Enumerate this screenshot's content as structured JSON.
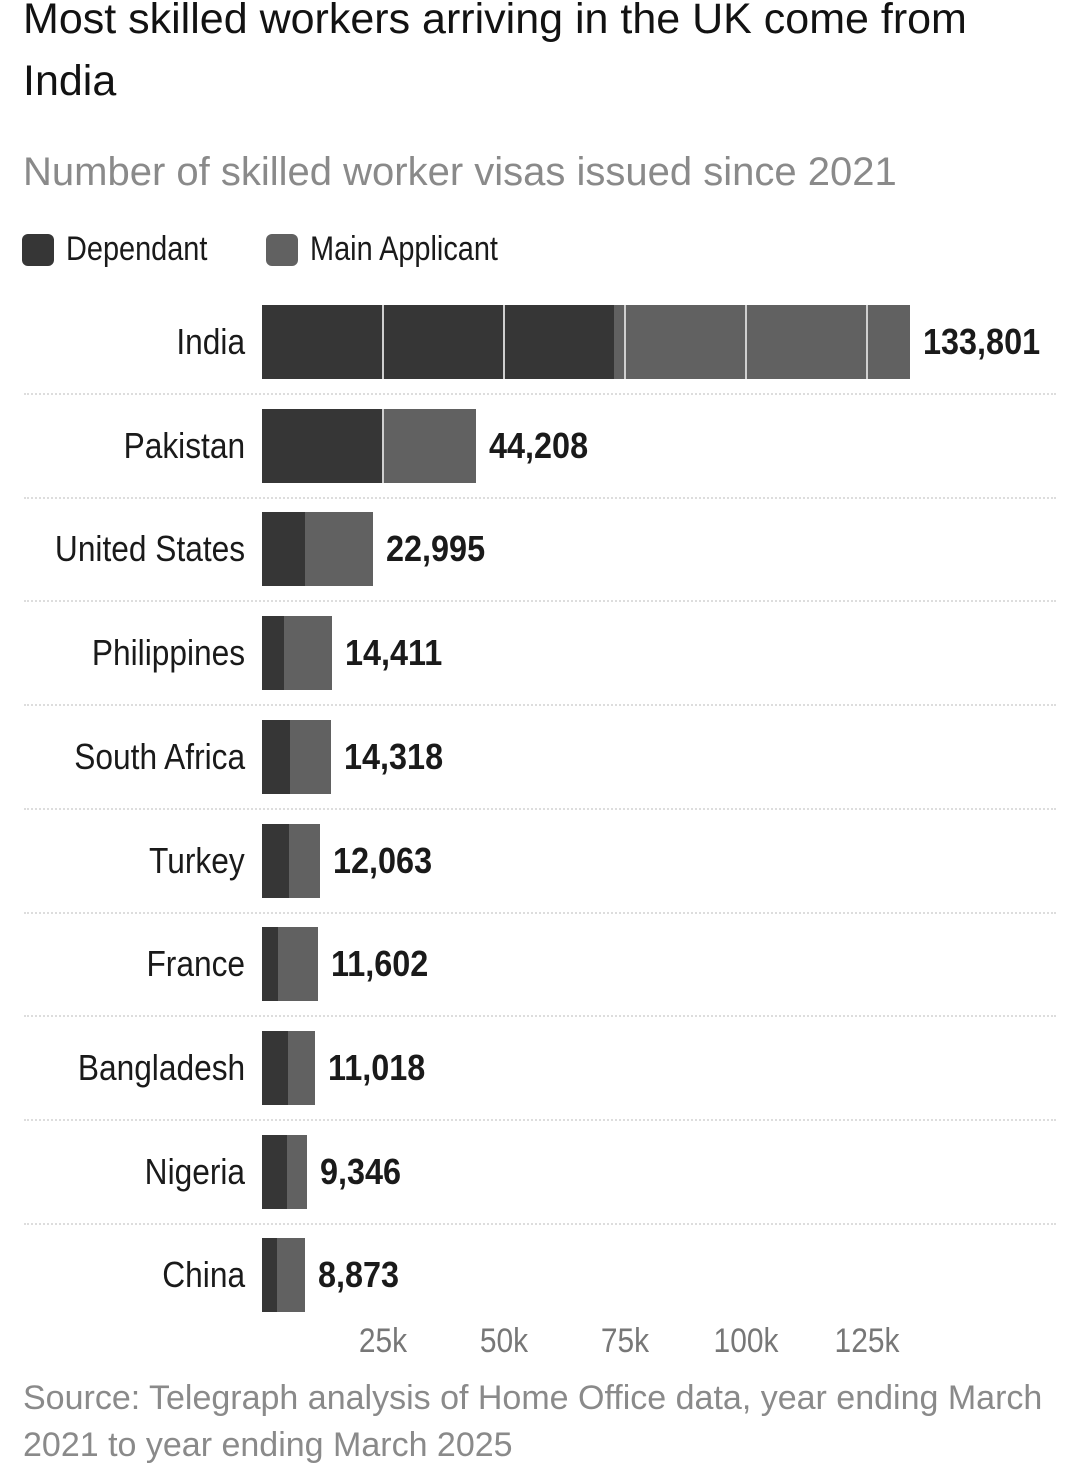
{
  "title": "Most skilled workers arriving in the UK come from India",
  "subtitle": "Number of skilled worker visas issued since 2021",
  "source": "Source: Telegraph analysis of Home Office data, year ending March 2021 to year ending March 2025",
  "colors": {
    "dependant": "#363636",
    "main_applicant": "#616161",
    "grid": "#cfcfcf"
  },
  "chart_data": {
    "type": "bar",
    "orientation": "horizontal",
    "stacked": true,
    "title": "Most skilled workers arriving in the UK come from India",
    "subtitle": "Number of skilled worker visas issued since 2021",
    "legend": [
      "Dependant",
      "Main Applicant"
    ],
    "legend_position": "top-left",
    "categories": [
      "India",
      "Pakistan",
      "United States",
      "Philippines",
      "South Africa",
      "Turkey",
      "France",
      "Bangladesh",
      "Nigeria",
      "China"
    ],
    "series": [
      {
        "name": "Dependant",
        "values": [
          72700,
          25000,
          8900,
          4500,
          5800,
          5600,
          3300,
          5400,
          5200,
          3100
        ]
      },
      {
        "name": "Main Applicant",
        "values": [
          61101,
          19208,
          14095,
          9911,
          8518,
          6463,
          8302,
          5618,
          4146,
          5773
        ]
      }
    ],
    "totals": [
      133801,
      44208,
      22995,
      14411,
      14318,
      12063,
      11602,
      11018,
      9346,
      8873
    ],
    "total_labels": [
      "133,801",
      "44,208",
      "22,995",
      "14,411",
      "14,318",
      "12,063",
      "11,602",
      "11,018",
      "9,346",
      "8,873"
    ],
    "x_ticks": [
      25000,
      50000,
      75000,
      100000,
      125000
    ],
    "x_tick_labels": [
      "25k",
      "50k",
      "75k",
      "100k",
      "125k"
    ],
    "xlim": [
      0,
      135000
    ],
    "grid": true
  }
}
